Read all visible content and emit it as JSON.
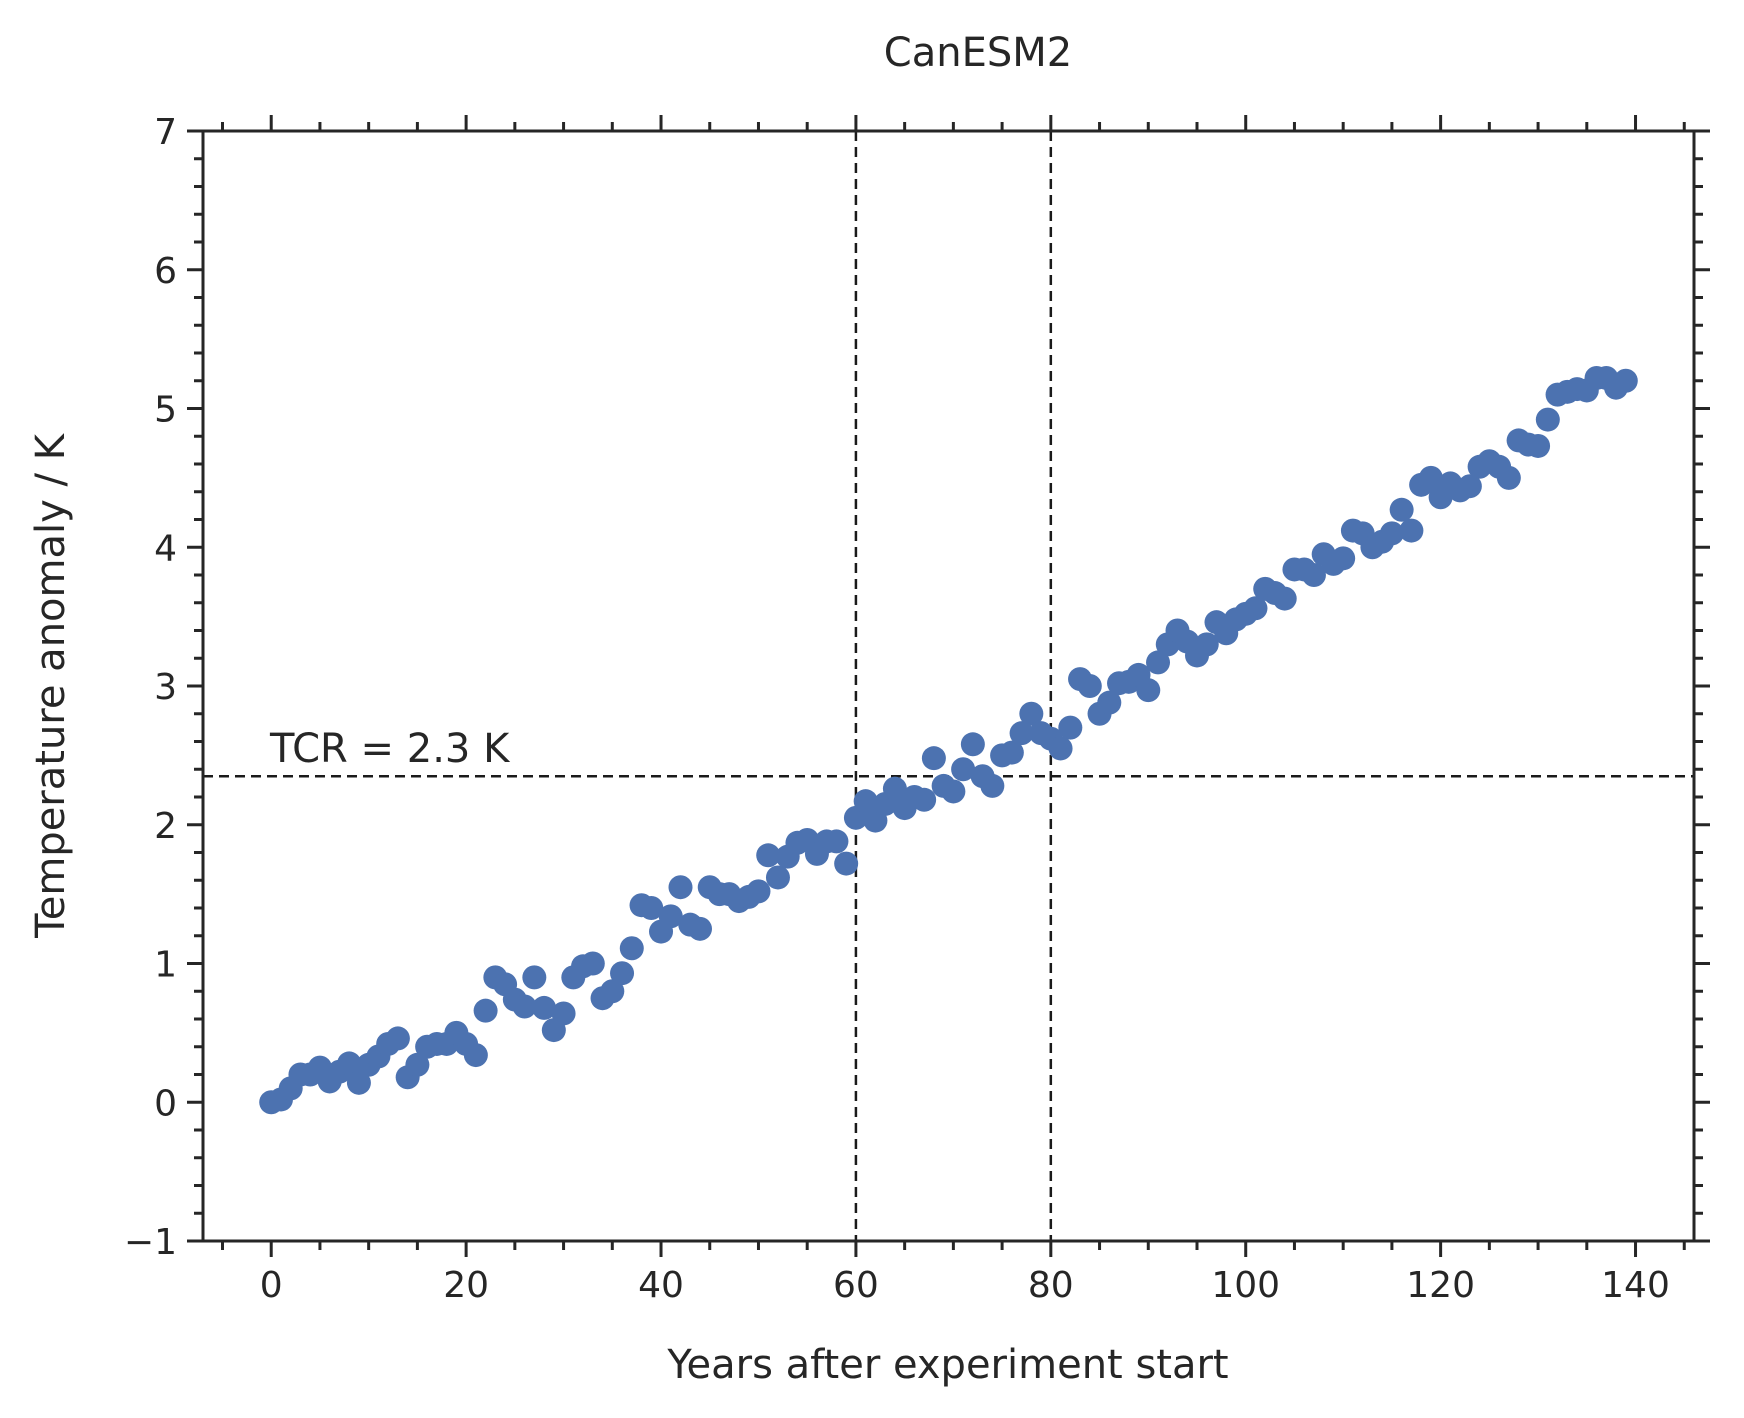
{
  "chart_data": {
    "type": "scatter",
    "title": "CanESM2",
    "xlabel": "Years after experiment start",
    "ylabel": "Temperature anomaly / K",
    "xlim": [
      -7,
      146
    ],
    "ylim": [
      -1,
      7
    ],
    "xticks": [
      0,
      20,
      40,
      60,
      80,
      100,
      120,
      140
    ],
    "yticks": [
      -1,
      0,
      1,
      2,
      3,
      4,
      5,
      6,
      7
    ],
    "ytick_labels": [
      "−1",
      "0",
      "1",
      "2",
      "3",
      "4",
      "5",
      "6",
      "7"
    ],
    "x_minor_step": 5,
    "y_minor_step": 0.2,
    "ticks_on_all_sides": true,
    "grid": false,
    "legend": "none",
    "marker_color": "#4c72b0",
    "reference_lines": {
      "vertical_x": [
        60,
        80
      ],
      "horizontal_y": 2.35,
      "color": "#1a1a1a",
      "style": "dashed"
    },
    "annotation": {
      "text": "TCR = 2.3 K",
      "x": 0,
      "y": 2.45
    },
    "x": [
      0,
      1,
      2,
      3,
      4,
      5,
      6,
      7,
      8,
      9,
      10,
      11,
      12,
      13,
      14,
      15,
      16,
      17,
      18,
      19,
      20,
      21,
      22,
      23,
      24,
      25,
      26,
      27,
      28,
      29,
      30,
      31,
      32,
      33,
      34,
      35,
      36,
      37,
      38,
      39,
      40,
      41,
      42,
      43,
      44,
      45,
      46,
      47,
      48,
      49,
      50,
      51,
      52,
      53,
      54,
      55,
      56,
      57,
      58,
      59,
      60,
      61,
      62,
      63,
      64,
      65,
      66,
      67,
      68,
      69,
      70,
      71,
      72,
      73,
      74,
      75,
      76,
      77,
      78,
      79,
      80,
      81,
      82,
      83,
      84,
      85,
      86,
      87,
      88,
      89,
      90,
      91,
      92,
      93,
      94,
      95,
      96,
      97,
      98,
      99,
      100,
      101,
      102,
      103,
      104,
      105,
      106,
      107,
      108,
      109,
      110,
      111,
      112,
      113,
      114,
      115,
      116,
      117,
      118,
      119,
      120,
      121,
      122,
      123,
      124,
      125,
      126,
      127,
      128,
      129,
      130,
      131,
      132,
      133,
      134,
      135,
      136,
      137,
      138,
      139
    ],
    "y": [
      0.0,
      0.02,
      0.1,
      0.2,
      0.2,
      0.25,
      0.15,
      0.22,
      0.28,
      0.14,
      0.27,
      0.33,
      0.42,
      0.46,
      0.18,
      0.27,
      0.4,
      0.42,
      0.42,
      0.5,
      0.42,
      0.34,
      0.66,
      0.9,
      0.85,
      0.74,
      0.69,
      0.9,
      0.68,
      0.52,
      0.64,
      0.9,
      0.98,
      1.0,
      0.75,
      0.8,
      0.93,
      1.11,
      1.42,
      1.4,
      1.23,
      1.34,
      1.55,
      1.28,
      1.25,
      1.55,
      1.5,
      1.5,
      1.45,
      1.48,
      1.52,
      1.78,
      1.62,
      1.77,
      1.87,
      1.89,
      1.79,
      1.88,
      1.88,
      1.72,
      2.05,
      2.17,
      2.03,
      2.15,
      2.26,
      2.12,
      2.2,
      2.18,
      2.48,
      2.28,
      2.24,
      2.4,
      2.58,
      2.35,
      2.28,
      2.5,
      2.52,
      2.66,
      2.8,
      2.66,
      2.62,
      2.55,
      2.7,
      3.05,
      3.0,
      2.8,
      2.88,
      3.02,
      3.03,
      3.08,
      2.97,
      3.17,
      3.3,
      3.4,
      3.32,
      3.22,
      3.3,
      3.46,
      3.38,
      3.48,
      3.52,
      3.56,
      3.7,
      3.67,
      3.63,
      3.84,
      3.84,
      3.8,
      3.95,
      3.88,
      3.92,
      4.12,
      4.1,
      4.0,
      4.04,
      4.1,
      4.27,
      4.12,
      4.45,
      4.5,
      4.36,
      4.46,
      4.41,
      4.44,
      4.58,
      4.62,
      4.58,
      4.5,
      4.77,
      4.74,
      4.73,
      4.92,
      5.1,
      5.12,
      5.14,
      5.13,
      5.22,
      5.22,
      5.15,
      5.2
    ]
  }
}
